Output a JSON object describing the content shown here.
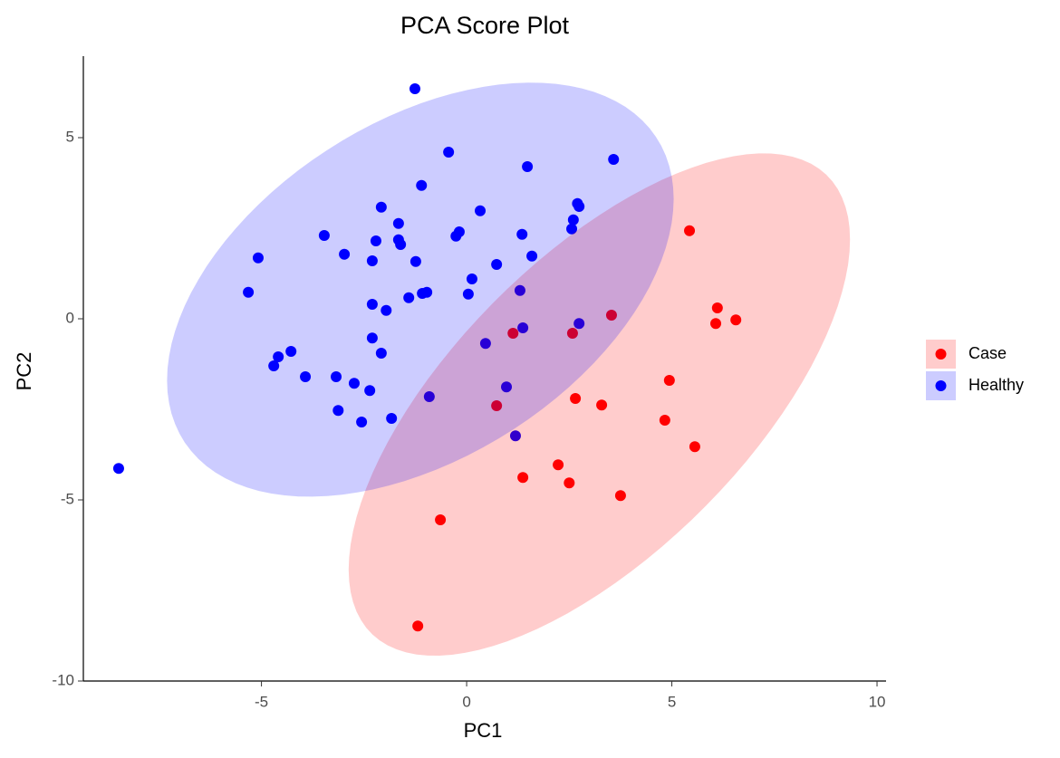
{
  "chart_data": {
    "type": "scatter",
    "title": "PCA Score Plot",
    "x_label": "PC1",
    "y_label": "PC2",
    "xlim": [
      -9.34,
      10.22
    ],
    "ylim": [
      -10.0,
      7.25
    ],
    "xticks": [
      -5,
      0,
      5,
      10
    ],
    "yticks": [
      -10,
      -5,
      0,
      5
    ],
    "legend": "right",
    "series": [
      {
        "name": "Case",
        "color": "#ff0000",
        "x": [
          5.43,
          6.11,
          6.56,
          6.07,
          3.53,
          1.13,
          2.58,
          4.94,
          2.65,
          3.29,
          0.73,
          4.83,
          5.56,
          1.37,
          2.23,
          2.5,
          3.75,
          -0.64,
          -1.19
        ],
        "y": [
          2.43,
          0.3,
          -0.03,
          -0.13,
          0.1,
          -0.4,
          -0.4,
          -1.7,
          -2.2,
          -2.38,
          -2.4,
          -2.8,
          -3.53,
          -4.38,
          -4.03,
          -4.53,
          -4.88,
          -5.55,
          -8.48
        ]
      },
      {
        "name": "Healthy",
        "color": "#0000ff",
        "x": [
          -1.26,
          -0.44,
          1.48,
          3.58,
          -1.1,
          2.7,
          2.74,
          -2.08,
          0.33,
          2.6,
          -1.66,
          -0.18,
          -0.26,
          -3.47,
          2.56,
          1.35,
          -2.21,
          -1.66,
          -1.61,
          -2.98,
          -5.08,
          1.59,
          -2.3,
          -1.24,
          0.73,
          0.13,
          -5.32,
          -0.97,
          -1.08,
          0.04,
          -1.41,
          1.3,
          -2.3,
          -1.96,
          2.74,
          1.37,
          -2.3,
          0.46,
          -4.28,
          -4.59,
          -2.08,
          -4.7,
          -3.93,
          -3.18,
          -2.74,
          -2.36,
          0.97,
          -0.91,
          -3.13,
          -1.83,
          -2.56,
          1.19,
          -8.48
        ],
        "y": [
          6.35,
          4.6,
          4.2,
          4.4,
          3.68,
          3.18,
          3.1,
          3.08,
          2.98,
          2.73,
          2.63,
          2.4,
          2.28,
          2.3,
          2.48,
          2.33,
          2.15,
          2.18,
          2.05,
          1.78,
          1.68,
          1.73,
          1.6,
          1.58,
          1.5,
          1.1,
          0.73,
          0.73,
          0.7,
          0.68,
          0.58,
          0.78,
          0.4,
          0.23,
          -0.13,
          -0.25,
          -0.53,
          -0.68,
          -0.9,
          -1.05,
          -0.95,
          -1.3,
          -1.6,
          -1.6,
          -1.78,
          -1.98,
          -1.88,
          -2.15,
          -2.53,
          -2.75,
          -2.85,
          -3.23,
          -4.13
        ]
      }
    ]
  }
}
